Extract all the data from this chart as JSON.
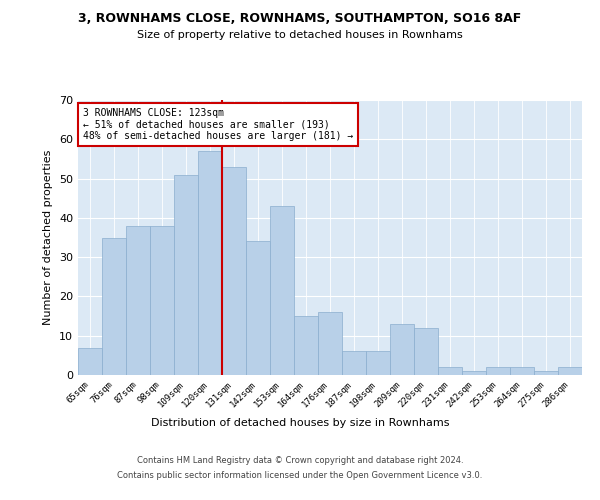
{
  "title": "3, ROWNHAMS CLOSE, ROWNHAMS, SOUTHAMPTON, SO16 8AF",
  "subtitle": "Size of property relative to detached houses in Rownhams",
  "xlabel": "Distribution of detached houses by size in Rownhams",
  "ylabel": "Number of detached properties",
  "categories": [
    "65sqm",
    "76sqm",
    "87sqm",
    "98sqm",
    "109sqm",
    "120sqm",
    "131sqm",
    "142sqm",
    "153sqm",
    "164sqm",
    "176sqm",
    "187sqm",
    "198sqm",
    "209sqm",
    "220sqm",
    "231sqm",
    "242sqm",
    "253sqm",
    "264sqm",
    "275sqm",
    "286sqm"
  ],
  "values": [
    7,
    35,
    38,
    38,
    51,
    57,
    53,
    34,
    43,
    15,
    16,
    6,
    6,
    13,
    12,
    2,
    1,
    2,
    2,
    1,
    2
  ],
  "bar_color": "#b8d0e8",
  "bar_edge_color": "#8aaece",
  "vline_x": 5.5,
  "vline_color": "#cc0000",
  "annotation_text": "3 ROWNHAMS CLOSE: 123sqm\n← 51% of detached houses are smaller (193)\n48% of semi-detached houses are larger (181) →",
  "ylim_max": 70,
  "bg_color": "#dce9f5",
  "footer_line1": "Contains HM Land Registry data © Crown copyright and database right 2024.",
  "footer_line2": "Contains public sector information licensed under the Open Government Licence v3.0."
}
